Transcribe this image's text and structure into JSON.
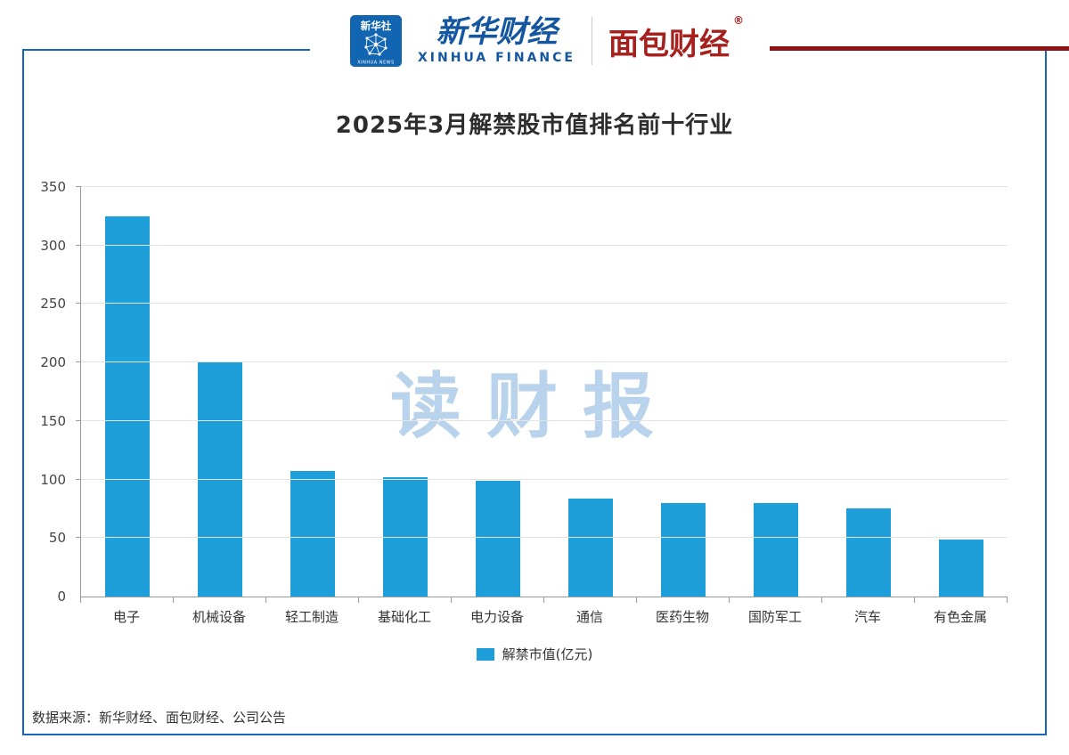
{
  "header": {
    "agency": {
      "name": "新华社",
      "sub": "XINHUA NEWS"
    },
    "finance": {
      "name": "新华财经",
      "sub": "XINHUA FINANCE"
    },
    "partner": {
      "name": "面包财经",
      "reg_mark": "®"
    }
  },
  "chart_data": {
    "type": "bar",
    "title": "2025年3月解禁股市值排名前十行业",
    "categories": [
      "电子",
      "机械设备",
      "轻工制造",
      "基础化工",
      "电力设备",
      "通信",
      "医药生物",
      "国防军工",
      "汽车",
      "有色金属"
    ],
    "values": [
      325,
      200,
      107,
      102,
      99,
      84,
      80,
      80,
      75,
      49
    ],
    "ylim": [
      0,
      350
    ],
    "ytick_step": 50,
    "grid": true,
    "legend_position": "bottom",
    "legend_label": "解禁市值(亿元)",
    "bar_color": "#1E9FD9",
    "watermark": "读财报"
  },
  "footer": {
    "source": "数据来源：新华财经、面包财经、公司公告"
  },
  "colors": {
    "frame_blue": "#1467b8",
    "accent_dark_red": "#8e1414",
    "brand_blue": "#1456a0",
    "brand_red": "#a6201e"
  }
}
